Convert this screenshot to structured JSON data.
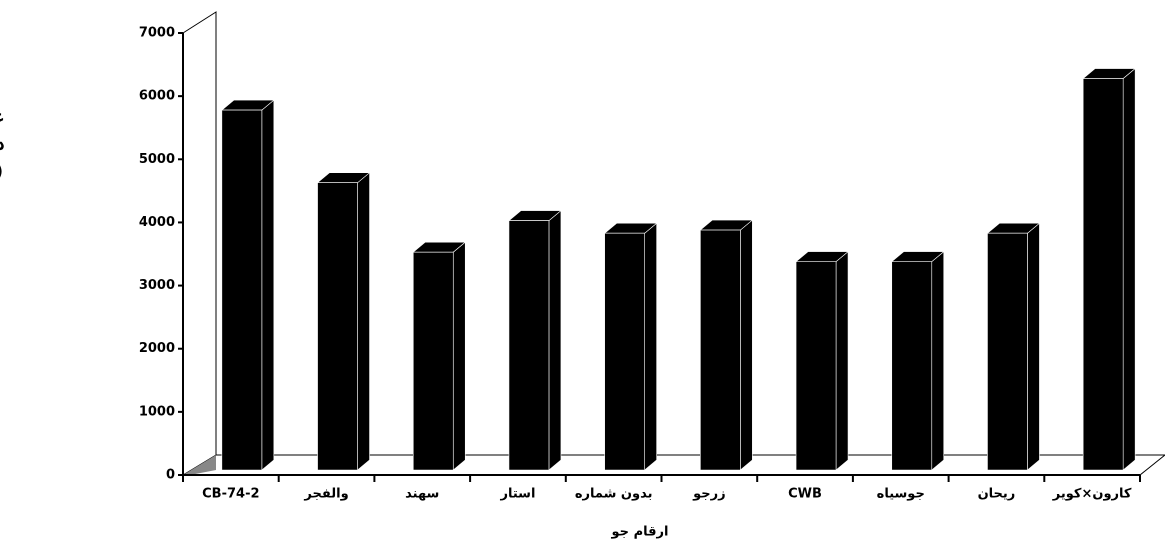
{
  "chart_data": {
    "type": "bar3d",
    "categories": [
      "CB-74-2",
      "والفجر",
      "سهند",
      "استار",
      "بدون شماره",
      "زرجو",
      "CWB",
      "جوسیاه",
      "ریحان",
      "کارون×کویر"
    ],
    "values": [
      5700,
      4550,
      3450,
      3950,
      3750,
      3800,
      3300,
      3300,
      3750,
      6200
    ],
    "color": "#000000",
    "ylim": [
      0,
      7000
    ],
    "yticks": [
      0,
      1000,
      2000,
      3000,
      4000,
      5000,
      6000,
      7000
    ],
    "x_label": "ارقام جو",
    "y_label_lines": [
      "عملکرد",
      "دانه",
      "(کیلوگ"
    ]
  }
}
